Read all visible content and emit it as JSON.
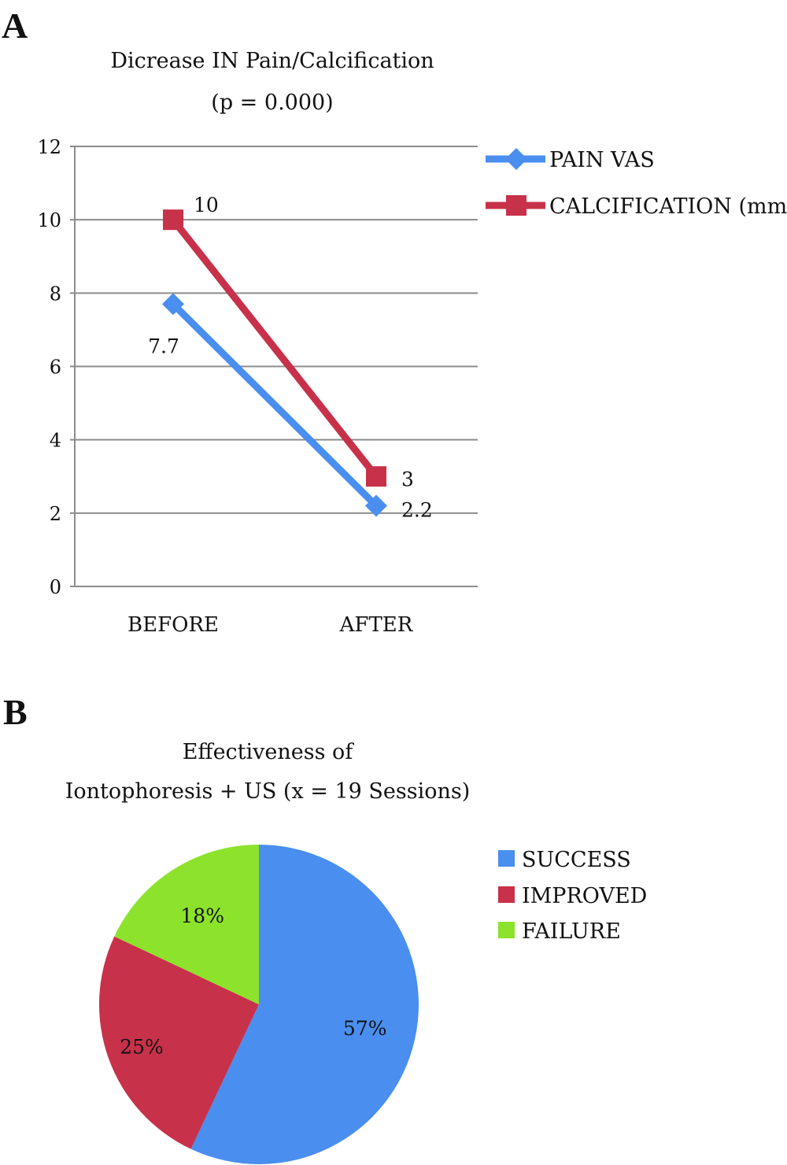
{
  "panels": {
    "a": "A",
    "b": "B"
  },
  "chart_data": [
    {
      "type": "line",
      "title": "Dicrease IN Pain/Calcification",
      "subtitle": "(p = 0.000)",
      "categories": [
        "BEFORE",
        "AFTER"
      ],
      "ylim": [
        0,
        12
      ],
      "yticks": [
        "0",
        "2",
        "4",
        "6",
        "8",
        "10",
        "12"
      ],
      "grid": true,
      "legend": "right",
      "series": [
        {
          "name": "PAIN VAS",
          "values": [
            7.7,
            2.2
          ],
          "labels": [
            "7.7",
            "2.2"
          ],
          "color": "#4a8ef0",
          "marker": "diamond"
        },
        {
          "name": "CALCIFICATION (mm)",
          "values": [
            10,
            3
          ],
          "labels": [
            "10",
            "3"
          ],
          "color": "#c8314a",
          "marker": "square"
        }
      ]
    },
    {
      "type": "pie",
      "title": "Effectiveness of",
      "subtitle": "Iontophoresis + US (x = 19 Sessions)",
      "categories": [
        "SUCCESS",
        "IMPROVED",
        "FAILURE"
      ],
      "values": [
        57,
        25,
        18
      ],
      "labels": [
        "57%",
        "25%",
        "18%"
      ],
      "colors": [
        "#4a8ef0",
        "#c8314a",
        "#8de22c"
      ],
      "legend": "right"
    }
  ]
}
